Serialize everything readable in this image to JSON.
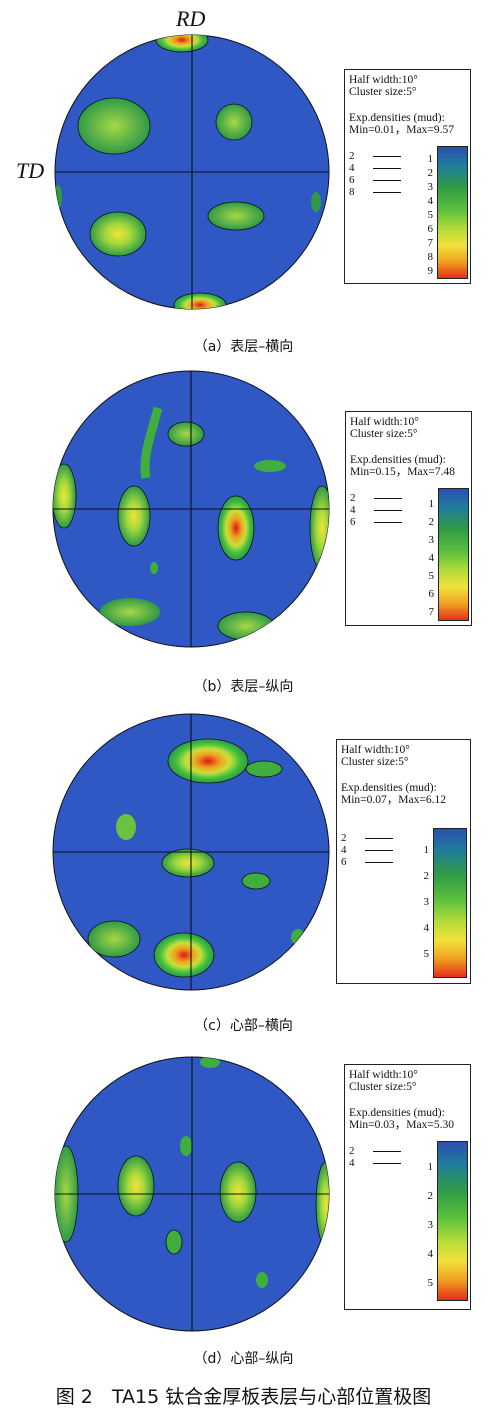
{
  "axes": {
    "rd": "RD",
    "td": "TD"
  },
  "panels": [
    {
      "caption": "（a）表层–横向",
      "legend": {
        "half_width": "Half width:10°",
        "cluster_size": "Cluster size:5°",
        "exp_densities": "Exp.densities (mud):",
        "minmax": "Min=0.01，Max=9.57",
        "levels": [
          "2",
          "4",
          "6",
          "8"
        ],
        "ticks": [
          "1",
          "2",
          "3",
          "4",
          "5",
          "6",
          "7",
          "8",
          "9"
        ]
      }
    },
    {
      "caption": "（b）表层–纵向",
      "legend": {
        "half_width": "Half width:10°",
        "cluster_size": "Cluster size:5°",
        "exp_densities": "Exp.densities (mud):",
        "minmax": "Min=0.15，Max=7.48",
        "levels": [
          "2",
          "4",
          "6"
        ],
        "ticks": [
          "1",
          "2",
          "3",
          "4",
          "5",
          "6",
          "7"
        ]
      }
    },
    {
      "caption": "（c）心部–横向",
      "legend": {
        "half_width": "Half width:10°",
        "cluster_size": "Cluster size:5°",
        "exp_densities": "Exp.densities (mud):",
        "minmax": "Min=0.07，Max=6.12",
        "levels": [
          "2",
          "4",
          "6"
        ],
        "ticks": [
          "1",
          "2",
          "3",
          "4",
          "5"
        ]
      }
    },
    {
      "caption": "（d）心部–纵向",
      "legend": {
        "half_width": "Half width:10°",
        "cluster_size": "Cluster size:5°",
        "exp_densities": "Exp.densities (mud):",
        "minmax": "Min=0.03，Max=5.30",
        "levels": [
          "2",
          "4"
        ],
        "ticks": [
          "1",
          "2",
          "3",
          "4",
          "5"
        ]
      }
    }
  ],
  "figure_caption": "图 2　TA15 钛合金厚板表层与心部位置极图"
}
